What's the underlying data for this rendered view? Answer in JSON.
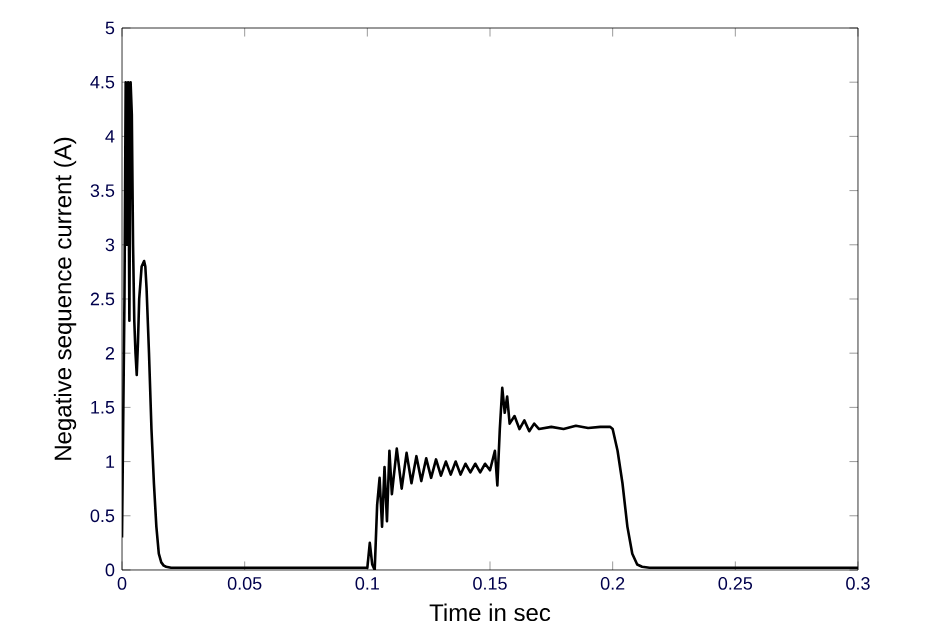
{
  "chart_data": {
    "type": "line",
    "xlabel": "Time in sec",
    "ylabel": "Negative sequence current (A)",
    "xlim": [
      0,
      0.3
    ],
    "ylim": [
      0,
      5
    ],
    "xticks": [
      0,
      0.05,
      0.1,
      0.15,
      0.2,
      0.25,
      0.3
    ],
    "yticks": [
      0,
      0.5,
      1,
      1.5,
      2,
      2.5,
      3,
      3.5,
      4,
      4.5,
      5
    ],
    "grid": false,
    "marker": "none",
    "line_style": "solid",
    "series": [
      {
        "color": "#000000",
        "x": [
          0,
          0.001,
          0.0015,
          0.002,
          0.0025,
          0.003,
          0.0035,
          0.004,
          0.0045,
          0.005,
          0.0055,
          0.006,
          0.0065,
          0.007,
          0.008,
          0.009,
          0.0095,
          0.01,
          0.011,
          0.012,
          0.013,
          0.014,
          0.015,
          0.016,
          0.017,
          0.018,
          0.02,
          0.03,
          0.05,
          0.07,
          0.09,
          0.1,
          0.101,
          0.102,
          0.103,
          0.104,
          0.105,
          0.106,
          0.107,
          0.108,
          0.109,
          0.11,
          0.112,
          0.114,
          0.116,
          0.118,
          0.12,
          0.122,
          0.124,
          0.126,
          0.128,
          0.13,
          0.132,
          0.134,
          0.136,
          0.138,
          0.14,
          0.142,
          0.144,
          0.146,
          0.148,
          0.15,
          0.152,
          0.153,
          0.154,
          0.155,
          0.156,
          0.157,
          0.158,
          0.16,
          0.162,
          0.164,
          0.166,
          0.168,
          0.17,
          0.175,
          0.18,
          0.185,
          0.19,
          0.195,
          0.199,
          0.2,
          0.202,
          0.204,
          0.206,
          0.208,
          0.21,
          0.212,
          0.215,
          0.22,
          0.25,
          0.3
        ],
        "values": [
          0.3,
          2.5,
          4.5,
          3.0,
          4.5,
          2.3,
          4.5,
          4.2,
          3.0,
          2.3,
          2.0,
          1.8,
          2.1,
          2.5,
          2.8,
          2.85,
          2.8,
          2.6,
          2.0,
          1.3,
          0.8,
          0.4,
          0.15,
          0.07,
          0.04,
          0.03,
          0.02,
          0.02,
          0.02,
          0.02,
          0.02,
          0.02,
          0.25,
          0.05,
          0.0,
          0.6,
          0.85,
          0.4,
          0.95,
          0.45,
          1.1,
          0.7,
          1.12,
          0.75,
          1.08,
          0.8,
          1.05,
          0.82,
          1.03,
          0.85,
          1.02,
          0.87,
          1.0,
          0.88,
          1.0,
          0.88,
          0.98,
          0.9,
          0.98,
          0.9,
          0.98,
          0.92,
          1.1,
          0.78,
          1.3,
          1.68,
          1.45,
          1.6,
          1.35,
          1.42,
          1.3,
          1.38,
          1.28,
          1.35,
          1.3,
          1.32,
          1.3,
          1.33,
          1.31,
          1.32,
          1.32,
          1.3,
          1.1,
          0.8,
          0.4,
          0.15,
          0.05,
          0.03,
          0.02,
          0.02,
          0.02,
          0.02
        ]
      }
    ]
  }
}
